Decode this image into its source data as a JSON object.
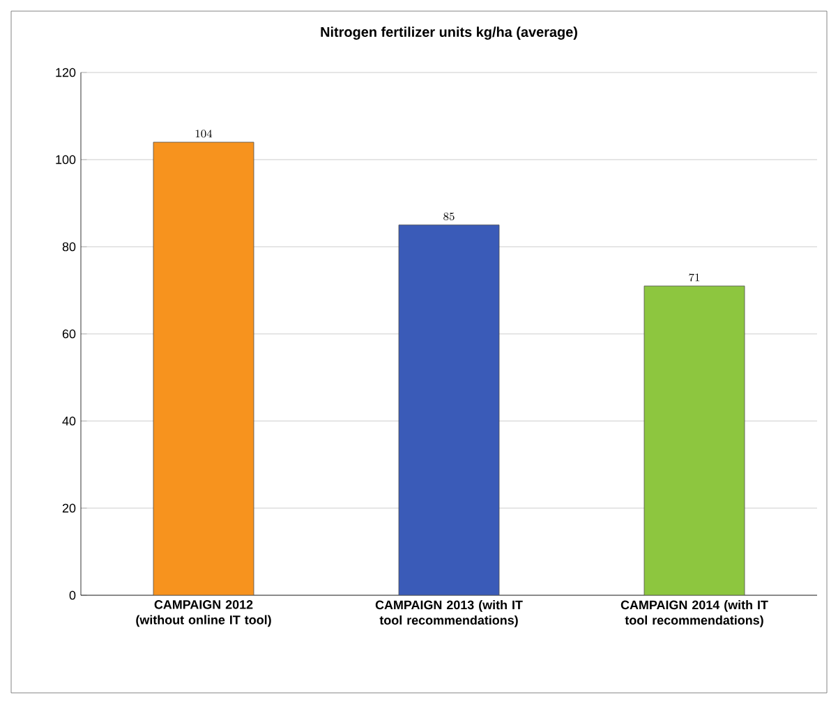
{
  "chart_data": {
    "type": "bar",
    "title": "Nitrogen fertilizer units kg/ha   (average)",
    "categories": [
      "CAMPAIGN 2012 (without online IT tool)",
      "CAMPAIGN 2013 (with IT tool recommendations)",
      "CAMPAIGN 2014 (with IT tool recommendations)"
    ],
    "values": [
      104,
      85,
      71
    ],
    "colors": [
      "#f7931e",
      "#3a5bb8",
      "#8dc63f"
    ],
    "ylim": [
      0,
      120
    ],
    "yticks": [
      0,
      20,
      40,
      60,
      80,
      100,
      120
    ],
    "grid": "y",
    "data_labels": true
  }
}
